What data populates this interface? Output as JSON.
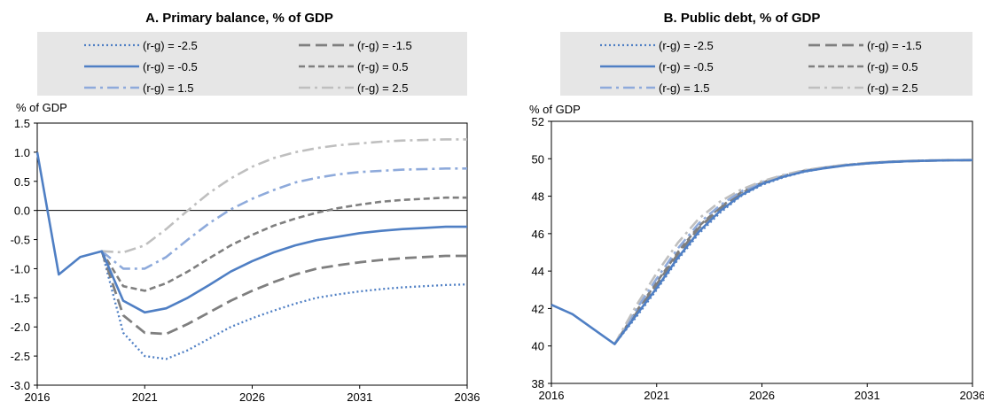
{
  "chart_data": [
    {
      "type": "line",
      "title": "A. Primary balance, % of GDP",
      "ylabel": "% of GDP",
      "xlabel": "",
      "ylim": [
        -3.0,
        1.5
      ],
      "xlim": [
        2016,
        2036
      ],
      "yticks": [
        "1.5",
        "1.0",
        "0.5",
        "0.0",
        "-0.5",
        "-1.0",
        "-1.5",
        "-2.0",
        "-2.5",
        "-3.0"
      ],
      "yticks_values": [
        1.5,
        1.0,
        0.5,
        0.0,
        -0.5,
        -1.0,
        -1.5,
        -2.0,
        -2.5,
        -3.0
      ],
      "xticks": [
        "2016",
        "2021",
        "2026",
        "2031",
        "2036"
      ],
      "xticks_values": [
        2016,
        2021,
        2026,
        2031,
        2036
      ],
      "zero_line": true,
      "legend_position": "top",
      "series": [
        {
          "name": "(r-g) = -2.5",
          "style": "dotted",
          "color": "#4f7fc4",
          "points": [
            [
              2019,
              -0.7
            ],
            [
              2020,
              -2.1
            ],
            [
              2021,
              -2.5
            ],
            [
              2022,
              -2.55
            ],
            [
              2023,
              -2.4
            ],
            [
              2024,
              -2.2
            ],
            [
              2025,
              -2.0
            ],
            [
              2026,
              -1.85
            ],
            [
              2027,
              -1.72
            ],
            [
              2028,
              -1.6
            ],
            [
              2029,
              -1.5
            ],
            [
              2030,
              -1.44
            ],
            [
              2031,
              -1.39
            ],
            [
              2032,
              -1.35
            ],
            [
              2033,
              -1.32
            ],
            [
              2034,
              -1.3
            ],
            [
              2035,
              -1.28
            ],
            [
              2036,
              -1.27
            ]
          ]
        },
        {
          "name": "(r-g) = -1.5",
          "style": "longdash",
          "color": "#7f7f7f",
          "points": [
            [
              2019,
              -0.7
            ],
            [
              2020,
              -1.8
            ],
            [
              2021,
              -2.1
            ],
            [
              2022,
              -2.12
            ],
            [
              2023,
              -1.95
            ],
            [
              2024,
              -1.75
            ],
            [
              2025,
              -1.55
            ],
            [
              2026,
              -1.38
            ],
            [
              2027,
              -1.23
            ],
            [
              2028,
              -1.1
            ],
            [
              2029,
              -1.0
            ],
            [
              2030,
              -0.94
            ],
            [
              2031,
              -0.89
            ],
            [
              2032,
              -0.85
            ],
            [
              2033,
              -0.82
            ],
            [
              2034,
              -0.8
            ],
            [
              2035,
              -0.78
            ],
            [
              2036,
              -0.78
            ]
          ]
        },
        {
          "name": "(r-g) = -0.5",
          "style": "solid",
          "color": "#4f7fc4",
          "points": [
            [
              2016,
              1.0
            ],
            [
              2017,
              -1.1
            ],
            [
              2018,
              -0.8
            ],
            [
              2019,
              -0.7
            ],
            [
              2020,
              -1.55
            ],
            [
              2021,
              -1.75
            ],
            [
              2022,
              -1.68
            ],
            [
              2023,
              -1.5
            ],
            [
              2024,
              -1.28
            ],
            [
              2025,
              -1.05
            ],
            [
              2026,
              -0.87
            ],
            [
              2027,
              -0.72
            ],
            [
              2028,
              -0.6
            ],
            [
              2029,
              -0.51
            ],
            [
              2030,
              -0.45
            ],
            [
              2031,
              -0.39
            ],
            [
              2032,
              -0.35
            ],
            [
              2033,
              -0.32
            ],
            [
              2034,
              -0.3
            ],
            [
              2035,
              -0.28
            ],
            [
              2036,
              -0.28
            ]
          ]
        },
        {
          "name": "(r-g) = 0.5",
          "style": "dash",
          "color": "#7f7f7f",
          "points": [
            [
              2019,
              -0.7
            ],
            [
              2020,
              -1.3
            ],
            [
              2021,
              -1.38
            ],
            [
              2022,
              -1.25
            ],
            [
              2023,
              -1.05
            ],
            [
              2024,
              -0.82
            ],
            [
              2025,
              -0.6
            ],
            [
              2026,
              -0.42
            ],
            [
              2027,
              -0.26
            ],
            [
              2028,
              -0.14
            ],
            [
              2029,
              -0.04
            ],
            [
              2030,
              0.04
            ],
            [
              2031,
              0.1
            ],
            [
              2032,
              0.15
            ],
            [
              2033,
              0.18
            ],
            [
              2034,
              0.2
            ],
            [
              2035,
              0.22
            ],
            [
              2036,
              0.22
            ]
          ]
        },
        {
          "name": "(r-g) = 1.5",
          "style": "dashdot",
          "color": "#8eaadb",
          "points": [
            [
              2019,
              -0.7
            ],
            [
              2020,
              -1.0
            ],
            [
              2021,
              -1.0
            ],
            [
              2022,
              -0.8
            ],
            [
              2023,
              -0.5
            ],
            [
              2024,
              -0.22
            ],
            [
              2025,
              0.02
            ],
            [
              2026,
              0.2
            ],
            [
              2027,
              0.35
            ],
            [
              2028,
              0.48
            ],
            [
              2029,
              0.56
            ],
            [
              2030,
              0.62
            ],
            [
              2031,
              0.66
            ],
            [
              2032,
              0.68
            ],
            [
              2033,
              0.7
            ],
            [
              2034,
              0.71
            ],
            [
              2035,
              0.72
            ],
            [
              2036,
              0.72
            ]
          ]
        },
        {
          "name": "(r-g) = 2.5",
          "style": "dashdot",
          "color": "#bfbfbf",
          "points": [
            [
              2019,
              -0.7
            ],
            [
              2020,
              -0.72
            ],
            [
              2021,
              -0.6
            ],
            [
              2022,
              -0.32
            ],
            [
              2023,
              0.0
            ],
            [
              2024,
              0.3
            ],
            [
              2025,
              0.55
            ],
            [
              2026,
              0.75
            ],
            [
              2027,
              0.9
            ],
            [
              2028,
              1.0
            ],
            [
              2029,
              1.07
            ],
            [
              2030,
              1.12
            ],
            [
              2031,
              1.15
            ],
            [
              2032,
              1.18
            ],
            [
              2033,
              1.2
            ],
            [
              2034,
              1.21
            ],
            [
              2035,
              1.22
            ],
            [
              2036,
              1.22
            ]
          ]
        }
      ]
    },
    {
      "type": "line",
      "title": "B. Public debt, % of GDP",
      "ylabel": "% of GDP",
      "xlabel": "",
      "ylim": [
        38,
        52
      ],
      "xlim": [
        2016,
        2036
      ],
      "yticks": [
        "52",
        "50",
        "48",
        "46",
        "44",
        "42",
        "40",
        "38"
      ],
      "yticks_values": [
        52,
        50,
        48,
        46,
        44,
        42,
        40,
        38
      ],
      "xticks": [
        "2016",
        "2021",
        "2026",
        "2031",
        "2036"
      ],
      "xticks_values": [
        2016,
        2021,
        2026,
        2031,
        2036
      ],
      "zero_line": false,
      "legend_position": "top",
      "series": [
        {
          "name": "(r-g) = -2.5",
          "style": "dotted",
          "color": "#4f7fc4",
          "points": [
            [
              2019,
              40.1
            ],
            [
              2020,
              41.5
            ],
            [
              2021,
              43.0
            ],
            [
              2022,
              44.6
            ],
            [
              2023,
              46.0
            ],
            [
              2024,
              47.1
            ],
            [
              2025,
              48.0
            ],
            [
              2026,
              48.6
            ],
            [
              2027,
              49.0
            ],
            [
              2028,
              49.3
            ],
            [
              2029,
              49.5
            ],
            [
              2030,
              49.65
            ],
            [
              2031,
              49.75
            ],
            [
              2032,
              49.82
            ],
            [
              2033,
              49.87
            ],
            [
              2034,
              49.9
            ],
            [
              2035,
              49.92
            ],
            [
              2036,
              49.93
            ]
          ]
        },
        {
          "name": "(r-g) = -1.5",
          "style": "longdash",
          "color": "#7f7f7f",
          "points": [
            [
              2019,
              40.1
            ],
            [
              2020,
              41.7
            ],
            [
              2021,
              43.3
            ],
            [
              2022,
              44.9
            ],
            [
              2023,
              46.3
            ],
            [
              2024,
              47.35
            ],
            [
              2025,
              48.15
            ],
            [
              2026,
              48.7
            ],
            [
              2027,
              49.07
            ],
            [
              2028,
              49.35
            ],
            [
              2029,
              49.52
            ],
            [
              2030,
              49.66
            ],
            [
              2031,
              49.76
            ],
            [
              2032,
              49.83
            ],
            [
              2033,
              49.87
            ],
            [
              2034,
              49.9
            ],
            [
              2035,
              49.92
            ],
            [
              2036,
              49.93
            ]
          ]
        },
        {
          "name": "(r-g) = -0.5",
          "style": "solid",
          "color": "#4f7fc4",
          "points": [
            [
              2016,
              42.2
            ],
            [
              2017,
              41.7
            ],
            [
              2018,
              40.9
            ],
            [
              2019,
              40.1
            ],
            [
              2020,
              41.6
            ],
            [
              2021,
              43.1
            ],
            [
              2022,
              44.7
            ],
            [
              2023,
              46.1
            ],
            [
              2024,
              47.2
            ],
            [
              2025,
              48.05
            ],
            [
              2026,
              48.65
            ],
            [
              2027,
              49.03
            ],
            [
              2028,
              49.32
            ],
            [
              2029,
              49.5
            ],
            [
              2030,
              49.65
            ],
            [
              2031,
              49.75
            ],
            [
              2032,
              49.82
            ],
            [
              2033,
              49.87
            ],
            [
              2034,
              49.9
            ],
            [
              2035,
              49.92
            ],
            [
              2036,
              49.93
            ]
          ]
        },
        {
          "name": "(r-g) = 0.5",
          "style": "dash",
          "color": "#7f7f7f",
          "points": [
            [
              2019,
              40.1
            ],
            [
              2020,
              41.8
            ],
            [
              2021,
              43.4
            ],
            [
              2022,
              45.0
            ],
            [
              2023,
              46.4
            ],
            [
              2024,
              47.4
            ],
            [
              2025,
              48.2
            ],
            [
              2026,
              48.72
            ],
            [
              2027,
              49.08
            ],
            [
              2028,
              49.36
            ],
            [
              2029,
              49.53
            ],
            [
              2030,
              49.67
            ],
            [
              2031,
              49.77
            ],
            [
              2032,
              49.84
            ],
            [
              2033,
              49.88
            ],
            [
              2034,
              49.91
            ],
            [
              2035,
              49.92
            ],
            [
              2036,
              49.93
            ]
          ]
        },
        {
          "name": "(r-g) = 1.5",
          "style": "dashdot",
          "color": "#8eaadb",
          "points": [
            [
              2019,
              40.1
            ],
            [
              2020,
              41.9
            ],
            [
              2021,
              43.6
            ],
            [
              2022,
              45.2
            ],
            [
              2023,
              46.55
            ],
            [
              2024,
              47.5
            ],
            [
              2025,
              48.25
            ],
            [
              2026,
              48.75
            ],
            [
              2027,
              49.1
            ],
            [
              2028,
              49.37
            ],
            [
              2029,
              49.54
            ],
            [
              2030,
              49.68
            ],
            [
              2031,
              49.77
            ],
            [
              2032,
              49.84
            ],
            [
              2033,
              49.88
            ],
            [
              2034,
              49.91
            ],
            [
              2035,
              49.92
            ],
            [
              2036,
              49.93
            ]
          ]
        },
        {
          "name": "(r-g) = 2.5",
          "style": "dashdot",
          "color": "#bfbfbf",
          "points": [
            [
              2019,
              40.1
            ],
            [
              2020,
              42.1
            ],
            [
              2021,
              43.9
            ],
            [
              2022,
              45.5
            ],
            [
              2023,
              46.8
            ],
            [
              2024,
              47.7
            ],
            [
              2025,
              48.35
            ],
            [
              2026,
              48.8
            ],
            [
              2027,
              49.13
            ],
            [
              2028,
              49.39
            ],
            [
              2029,
              49.55
            ],
            [
              2030,
              49.69
            ],
            [
              2031,
              49.78
            ],
            [
              2032,
              49.85
            ],
            [
              2033,
              49.89
            ],
            [
              2034,
              49.91
            ],
            [
              2035,
              49.92
            ],
            [
              2036,
              49.93
            ]
          ]
        }
      ]
    }
  ]
}
